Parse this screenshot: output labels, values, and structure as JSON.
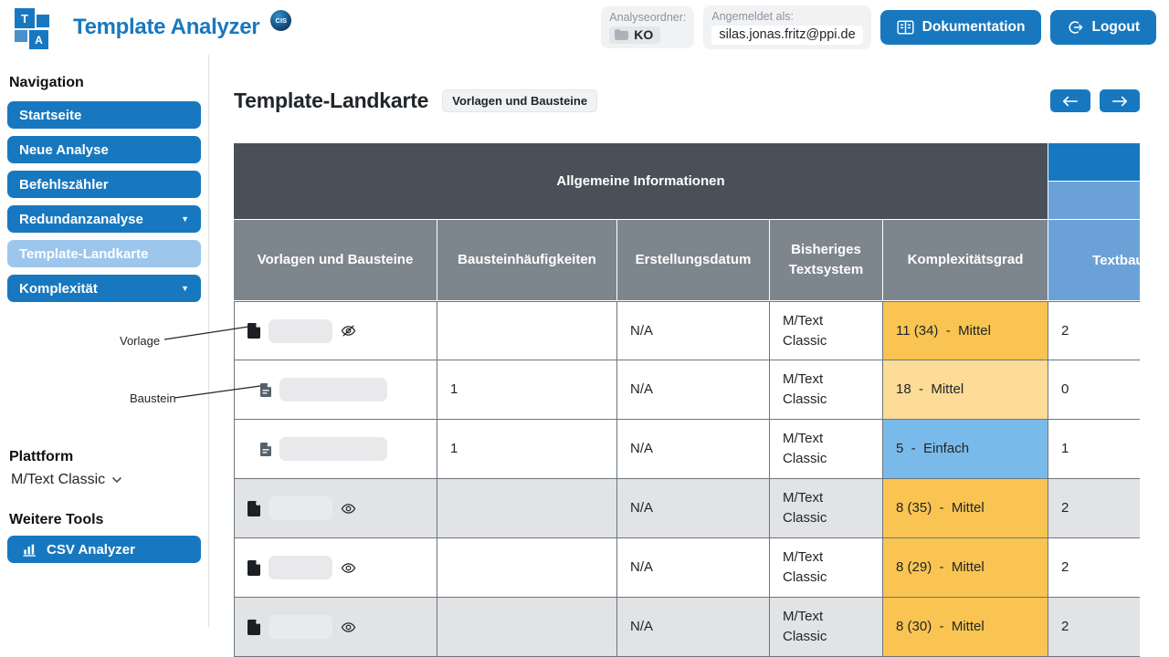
{
  "header": {
    "logo": {
      "title": "Template Analyzer",
      "badge": "CIS",
      "square_letters": [
        "T",
        "A"
      ]
    },
    "analyse_folder": {
      "label": "Analyseordner:",
      "value": "KO"
    },
    "logged_in_as": {
      "label": "Angemeldet als:",
      "value": "silas.jonas.fritz@ppi.de"
    },
    "documentation_button": "Dokumentation",
    "logout_button": "Logout"
  },
  "sidebar": {
    "nav_heading": "Navigation",
    "items": [
      {
        "label": "Startseite",
        "caret": false,
        "active": false
      },
      {
        "label": "Neue Analyse",
        "caret": false,
        "active": false
      },
      {
        "label": "Befehlszähler",
        "caret": false,
        "active": false
      },
      {
        "label": "Redundanzanalyse",
        "caret": true,
        "active": false
      },
      {
        "label": "Template-Landkarte",
        "caret": false,
        "active": true
      },
      {
        "label": "Komplexität",
        "caret": true,
        "active": false
      }
    ],
    "platform_heading": "Plattform",
    "platform_value": "M/Text Classic",
    "tools_heading": "Weitere Tools",
    "csv_analyzer_label": "CSV Analyzer"
  },
  "annotations": {
    "vorlage": "Vorlage",
    "baustein": "Baustein"
  },
  "main": {
    "title": "Template-Landkarte",
    "title_badge": "Vorlagen und Bausteine",
    "table": {
      "group_header": "Allgemeine Informationen",
      "columns": [
        "Vorlagen und Bausteine",
        "Bausteinhäufigkeiten",
        "Erstellungsdatum",
        "Bisheriges Textsystem",
        "Komplexitätsgrad",
        "Textbausteine"
      ],
      "rows": [
        {
          "icon": "vorlage",
          "eye": "hidden",
          "pill_width": 70,
          "shaded": false,
          "haeufigkeit": "",
          "datum": "N/A",
          "textsystem": "M/Text Classic",
          "komplexitaet": "11 (34)  -  Mittel",
          "komplexitaet_color": "mittel",
          "textbausteine": "2"
        },
        {
          "icon": "baustein",
          "eye": null,
          "pill_width": 118,
          "shaded": false,
          "haeufigkeit": "1",
          "datum": "N/A",
          "textsystem": "M/Text Classic",
          "komplexitaet": "18  -  Mittel",
          "komplexitaet_color": "mittel_hell",
          "textbausteine": "0"
        },
        {
          "icon": "baustein",
          "eye": null,
          "pill_width": 118,
          "shaded": false,
          "haeufigkeit": "1",
          "datum": "N/A",
          "textsystem": "M/Text Classic",
          "komplexitaet": "5  -  Einfach",
          "komplexitaet_color": "einfach",
          "textbausteine": "1"
        },
        {
          "icon": "vorlage",
          "eye": "visible",
          "pill_width": 70,
          "shaded": true,
          "haeufigkeit": "",
          "datum": "N/A",
          "textsystem": "M/Text Classic",
          "komplexitaet": "8 (35)  -  Mittel",
          "komplexitaet_color": "mittel",
          "textbausteine": "2"
        },
        {
          "icon": "vorlage",
          "eye": "visible",
          "pill_width": 70,
          "shaded": false,
          "haeufigkeit": "",
          "datum": "N/A",
          "textsystem": "M/Text Classic",
          "komplexitaet": "8 (29)  -  Mittel",
          "komplexitaet_color": "mittel",
          "textbausteine": "2"
        },
        {
          "icon": "vorlage",
          "eye": "visible",
          "pill_width": 70,
          "shaded": true,
          "haeufigkeit": "",
          "datum": "N/A",
          "textsystem": "M/Text Classic",
          "komplexitaet": "8 (30)  -  Mittel",
          "komplexitaet_color": "mittel",
          "textbausteine": "2"
        }
      ]
    }
  },
  "colors": {
    "accent_blue": "#1878bf",
    "active_nav": "#9dc6ed",
    "header_dark": "#495057",
    "header_gray": "#7d858d",
    "header_blue_light": "#6aa2d8",
    "mittel": "#f9c452",
    "mittel_hell": "#fcdc96",
    "einfach": "#7abaea",
    "row_shaded": "#e2e3e5"
  }
}
